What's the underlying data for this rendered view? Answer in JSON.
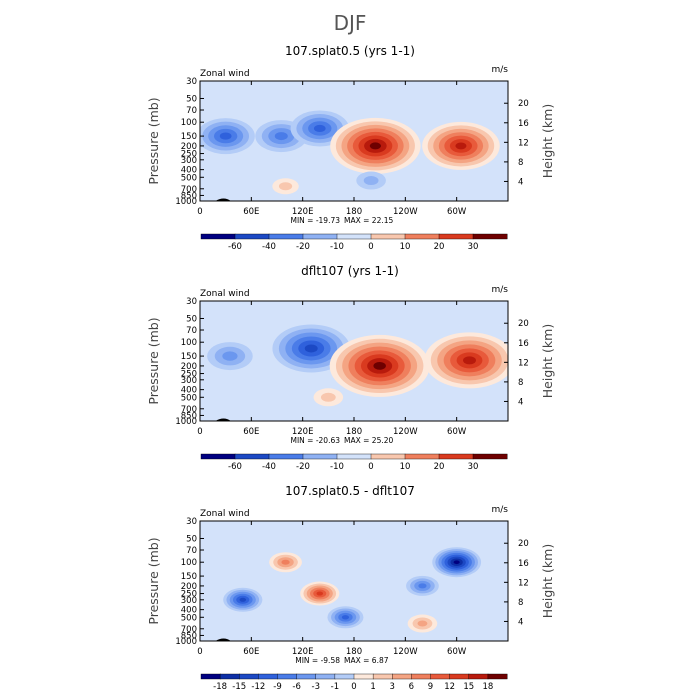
{
  "figure_title": "DJF",
  "chart_data": [
    {
      "type": "heatmap",
      "title": "107.splat0.5 (yrs 1-1)",
      "field_label": "Zonal wind",
      "units": "m/s",
      "ylabel": "Pressure (mb)",
      "ylabel_right": "Height (km)",
      "x_ticks": [
        "0",
        "60E",
        "120E",
        "180",
        "120W",
        "60W"
      ],
      "x_values": [
        0,
        60,
        120,
        180,
        240,
        300
      ],
      "xlim": [
        0,
        360
      ],
      "pressure_ticks": [
        "30",
        "50",
        "70",
        "100",
        "150",
        "200",
        "250",
        "300",
        "400",
        "500",
        "700",
        "850",
        "1000"
      ],
      "pressure_values": [
        30,
        50,
        70,
        100,
        150,
        200,
        250,
        300,
        400,
        500,
        700,
        850,
        1000
      ],
      "ylim": [
        1000,
        30
      ],
      "height_ticks": [
        "20",
        "16",
        "12",
        "8",
        "4"
      ],
      "height_values": [
        20,
        16,
        12,
        8,
        4
      ],
      "min_label": "MIN = -19.73",
      "max_label": "MAX = 22.15",
      "colorbar_levels": [
        "-60",
        "-40",
        "-20",
        "-10",
        "0",
        "10",
        "20",
        "30"
      ],
      "colors": [
        "#000080",
        "#0d2fa6",
        "#1c49c4",
        "#2f61dc",
        "#4a7ce8",
        "#6b97ef",
        "#8fb1f3",
        "#b3ccf7",
        "#d3e2fa",
        "#fde9dc",
        "#f8c7ae",
        "#f4a483",
        "#ef7f5d",
        "#e85a3b",
        "#d93a1f",
        "#b81a0c",
        "#6e0000"
      ],
      "features": [
        {
          "lon": 30,
          "p": 150,
          "value": -12
        },
        {
          "lon": 95,
          "p": 150,
          "value": -10
        },
        {
          "lon": 140,
          "p": 120,
          "value": -12
        },
        {
          "lon": 205,
          "p": 200,
          "value": 22
        },
        {
          "lon": 305,
          "p": 200,
          "value": 18
        },
        {
          "lon": 100,
          "p": 650,
          "value": 2
        },
        {
          "lon": 200,
          "p": 550,
          "value": -3
        }
      ]
    },
    {
      "type": "heatmap",
      "title": "dflt107 (yrs 1-1)",
      "field_label": "Zonal wind",
      "units": "m/s",
      "ylabel": "Pressure (mb)",
      "ylabel_right": "Height (km)",
      "x_ticks": [
        "0",
        "60E",
        "120E",
        "180",
        "120W",
        "60W"
      ],
      "x_values": [
        0,
        60,
        120,
        180,
        240,
        300
      ],
      "xlim": [
        0,
        360
      ],
      "pressure_ticks": [
        "30",
        "50",
        "70",
        "100",
        "150",
        "200",
        "250",
        "300",
        "400",
        "500",
        "700",
        "850",
        "1000"
      ],
      "pressure_values": [
        30,
        50,
        70,
        100,
        150,
        200,
        250,
        300,
        400,
        500,
        700,
        850,
        1000
      ],
      "ylim": [
        1000,
        30
      ],
      "height_ticks": [
        "20",
        "16",
        "12",
        "8",
        "4"
      ],
      "height_values": [
        20,
        16,
        12,
        8,
        4
      ],
      "min_label": "MIN = -20.63",
      "max_label": "MAX = 25.20",
      "colorbar_levels": [
        "-60",
        "-40",
        "-20",
        "-10",
        "0",
        "10",
        "20",
        "30"
      ],
      "colors": [
        "#000080",
        "#0d2fa6",
        "#1c49c4",
        "#2f61dc",
        "#4a7ce8",
        "#6b97ef",
        "#8fb1f3",
        "#b3ccf7",
        "#d3e2fa",
        "#fde9dc",
        "#f8c7ae",
        "#f4a483",
        "#ef7f5d",
        "#e85a3b",
        "#d93a1f",
        "#b81a0c",
        "#6e0000"
      ],
      "features": [
        {
          "lon": 35,
          "p": 150,
          "value": -8
        },
        {
          "lon": 130,
          "p": 120,
          "value": -18
        },
        {
          "lon": 210,
          "p": 200,
          "value": 25
        },
        {
          "lon": 315,
          "p": 170,
          "value": 22
        },
        {
          "lon": 150,
          "p": 500,
          "value": 3
        }
      ]
    },
    {
      "type": "heatmap",
      "title": "107.splat0.5 - dflt107",
      "field_label": "Zonal wind",
      "units": "m/s",
      "ylabel": "Pressure (mb)",
      "ylabel_right": "Height (km)",
      "x_ticks": [
        "0",
        "60E",
        "120E",
        "180",
        "120W",
        "60W"
      ],
      "x_values": [
        0,
        60,
        120,
        180,
        240,
        300
      ],
      "xlim": [
        0,
        360
      ],
      "pressure_ticks": [
        "30",
        "50",
        "70",
        "100",
        "150",
        "200",
        "250",
        "300",
        "400",
        "500",
        "700",
        "850",
        "1000"
      ],
      "pressure_values": [
        30,
        50,
        70,
        100,
        150,
        200,
        250,
        300,
        400,
        500,
        700,
        850,
        1000
      ],
      "ylim": [
        1000,
        30
      ],
      "height_ticks": [
        "20",
        "16",
        "12",
        "8",
        "4"
      ],
      "height_values": [
        20,
        16,
        12,
        8,
        4
      ],
      "min_label": "MIN = -9.58",
      "max_label": "MAX = 6.87",
      "colorbar_levels": [
        "-18",
        "-15",
        "-12",
        "-9",
        "-6",
        "-3",
        "-1",
        "0",
        "1",
        "3",
        "6",
        "9",
        "12",
        "15",
        "18"
      ],
      "colors": [
        "#000080",
        "#0d2fa6",
        "#1c49c4",
        "#2f61dc",
        "#4a7ce8",
        "#6b97ef",
        "#8fb1f3",
        "#b3ccf7",
        "#d3e2fa",
        "#fde9dc",
        "#f8c7ae",
        "#f4a483",
        "#ef7f5d",
        "#e85a3b",
        "#d93a1f",
        "#b81a0c",
        "#6e0000"
      ],
      "features": [
        {
          "lon": 100,
          "p": 100,
          "value": 4
        },
        {
          "lon": 140,
          "p": 250,
          "value": 6
        },
        {
          "lon": 300,
          "p": 100,
          "value": -9
        },
        {
          "lon": 260,
          "p": 200,
          "value": -4
        },
        {
          "lon": 50,
          "p": 300,
          "value": -6
        },
        {
          "lon": 170,
          "p": 500,
          "value": -5
        },
        {
          "lon": 260,
          "p": 600,
          "value": 3
        }
      ]
    }
  ]
}
